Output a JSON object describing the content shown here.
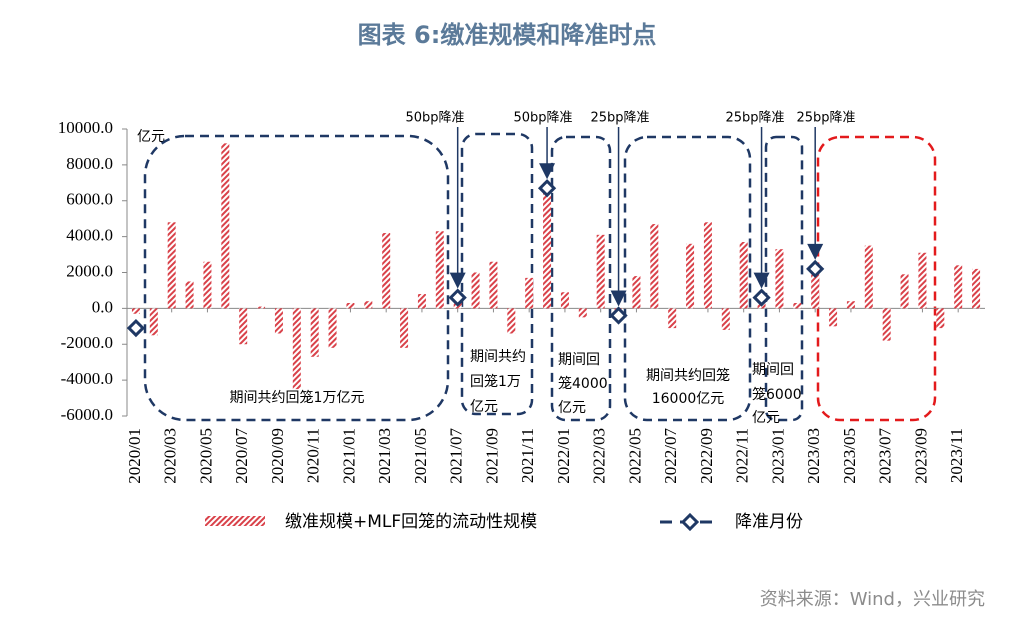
{
  "chart_data": {
    "type": "bar",
    "title": "图表 6:缴准规模和降准时点",
    "source": "资料来源：Wind，兴业研究",
    "categories": [
      "2020/01",
      null,
      "2020/03",
      null,
      "2020/05",
      null,
      "2020/07",
      null,
      "2020/09",
      null,
      "2020/11",
      null,
      "2021/01",
      null,
      "2021/03",
      null,
      "2021/05",
      null,
      "2021/07",
      null,
      "2021/09",
      null,
      "2021/11",
      null,
      "2022/01",
      null,
      "2022/03",
      null,
      "2022/05",
      null,
      "2022/07",
      null,
      "2022/09",
      null,
      "2022/11",
      null,
      "2023/01",
      null,
      "2023/03",
      null,
      "2023/05",
      null,
      "2023/07",
      null,
      "2023/09",
      null,
      "2023/11",
      null
    ],
    "series": [
      {
        "name": "缴准规模+MLF回笼的流动性规模",
        "color": "#d9424a",
        "values": [
          -300,
          -1500,
          4800,
          1500,
          2600,
          9200,
          -2000,
          100,
          -1400,
          -4500,
          -2700,
          -2200,
          300,
          400,
          4200,
          -2200,
          800,
          4300,
          600,
          2000,
          2600,
          -1400,
          1700,
          7000,
          900,
          -500,
          4100,
          -400,
          1800,
          4700,
          -1100,
          3600,
          4800,
          -1200,
          3700,
          500,
          3300,
          300,
          2200,
          -1000,
          400,
          3500,
          -1800,
          1900,
          3100,
          -1100,
          2400,
          2200
        ]
      },
      {
        "name": "降准月份",
        "color": "#1f3864",
        "values": [
          -1100,
          null,
          null,
          null,
          null,
          null,
          null,
          null,
          null,
          null,
          null,
          null,
          null,
          null,
          null,
          null,
          null,
          null,
          600,
          null,
          null,
          null,
          null,
          6700,
          null,
          null,
          null,
          -400,
          null,
          null,
          null,
          null,
          null,
          null,
          null,
          600,
          null,
          null,
          2200,
          null,
          null,
          null,
          null,
          null,
          null,
          null,
          null,
          null
        ]
      }
    ],
    "ylim": [
      -6000,
      10000
    ],
    "yticks": [
      {
        "value": -6000,
        "label": "-6000.0"
      },
      {
        "value": -4000,
        "label": "-4000.0"
      },
      {
        "value": -2000,
        "label": "-2000.0"
      },
      {
        "value": 0,
        "label": "0.0"
      },
      {
        "value": 2000,
        "label": "2000.0"
      },
      {
        "value": 4000,
        "label": "4000.0"
      },
      {
        "value": 6000,
        "label": "6000.0"
      },
      {
        "value": 8000,
        "label": "8000.0"
      },
      {
        "value": 10000,
        "label": "10000.0"
      }
    ],
    "grid": false,
    "unit": "亿元",
    "cuts": [
      "50bp降准",
      "50bp降准",
      "25bp降准",
      "25bp降准",
      "25bp降准"
    ],
    "notes": [
      [
        "期间共约回笼1万亿元"
      ],
      [
        "期间共约",
        "回笼1万",
        "亿元"
      ],
      [
        "期间回",
        "笼4000",
        "亿元"
      ],
      [
        "期间共约回笼",
        "16000亿元"
      ],
      [
        "期间回",
        "笼6000",
        "亿元"
      ]
    ]
  }
}
